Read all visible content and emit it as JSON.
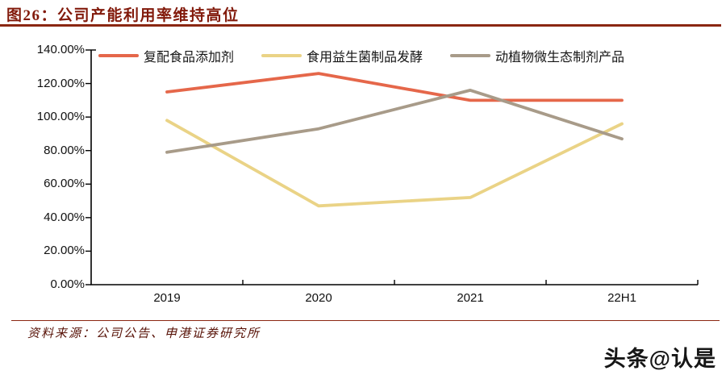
{
  "header": {
    "title": "图26：公司产能利用率维持高位"
  },
  "chart_data": {
    "type": "line",
    "title": "公司产能利用率维持高位",
    "categories": [
      "2019",
      "2020",
      "2021",
      "22H1"
    ],
    "series": [
      {
        "name": "复配食品添加剂",
        "color": "#E5674A",
        "values": [
          115,
          126,
          110,
          110
        ]
      },
      {
        "name": "食用益生菌制品发酵",
        "color": "#EAD386",
        "values": [
          98,
          47,
          52,
          96
        ]
      },
      {
        "name": "动植物微生态制剂产品",
        "color": "#A89B89",
        "values": [
          79,
          93,
          116,
          87
        ]
      }
    ],
    "ylim": [
      0,
      140
    ],
    "ytick_step": 20,
    "ytick_labels": [
      "0.00%",
      "20.00%",
      "40.00%",
      "60.00%",
      "80.00%",
      "100.00%",
      "120.00%",
      "140.00%"
    ],
    "legend_position": "top",
    "grid": false,
    "axis_color": "#000000"
  },
  "footer": {
    "source": "资料来源：公司公告、申港证券研究所",
    "watermark": "头条@认是"
  },
  "colors": {
    "accent": "#8B2712",
    "title_text": "#821A0B"
  }
}
